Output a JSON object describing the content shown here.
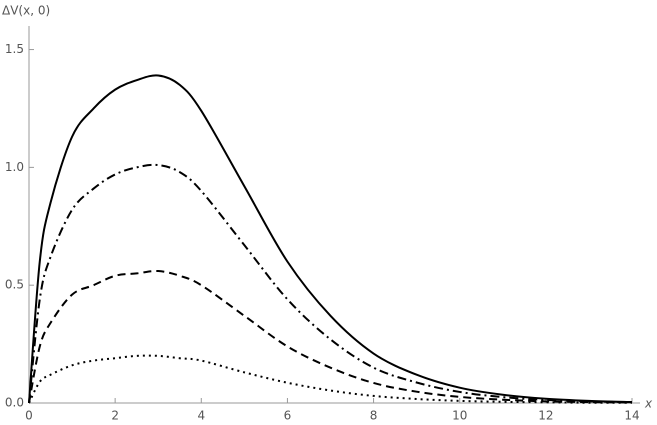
{
  "chart_data": {
    "type": "line",
    "y_label": "ΔV(x, 0)",
    "x_label": "x",
    "x": [
      0,
      0.25,
      0.5,
      1,
      1.5,
      2,
      2.5,
      3,
      3.5,
      4,
      5,
      6,
      7,
      8,
      9,
      10,
      11,
      12,
      13,
      14
    ],
    "series": [
      {
        "color": "#000000",
        "dash": "solid",
        "values": [
          0,
          0.6,
          0.85,
          1.13,
          1.25,
          1.33,
          1.37,
          1.39,
          1.35,
          1.24,
          0.92,
          0.6,
          0.37,
          0.21,
          0.12,
          0.065,
          0.035,
          0.018,
          0.009,
          0.004
        ]
      },
      {
        "color": "#000000",
        "dash": "dashdot",
        "values": [
          0,
          0.44,
          0.62,
          0.82,
          0.91,
          0.97,
          1.0,
          1.01,
          0.98,
          0.9,
          0.67,
          0.44,
          0.27,
          0.15,
          0.087,
          0.047,
          0.025,
          0.013,
          0.007,
          0.003
        ]
      },
      {
        "color": "#000000",
        "dash": "dashed",
        "values": [
          0,
          0.24,
          0.34,
          0.46,
          0.5,
          0.54,
          0.55,
          0.56,
          0.54,
          0.5,
          0.37,
          0.24,
          0.15,
          0.085,
          0.048,
          0.026,
          0.014,
          0.007,
          0.004,
          0.002
        ]
      },
      {
        "color": "#000000",
        "dash": "dotted",
        "values": [
          0,
          0.09,
          0.12,
          0.16,
          0.18,
          0.19,
          0.2,
          0.2,
          0.19,
          0.18,
          0.13,
          0.086,
          0.053,
          0.03,
          0.017,
          0.009,
          0.005,
          0.003,
          0.001,
          0.001
        ]
      }
    ],
    "xlim": [
      0,
      14
    ],
    "xticks": [
      0,
      2,
      4,
      6,
      8,
      10,
      12,
      14
    ],
    "ylim": [
      0,
      1.6
    ],
    "yticks": [
      {
        "value": 0,
        "label": "0.0"
      },
      0.5,
      {
        "value": 1,
        "label": "1.0"
      },
      {
        "value": 1.5,
        "label": "1.5"
      }
    ]
  }
}
